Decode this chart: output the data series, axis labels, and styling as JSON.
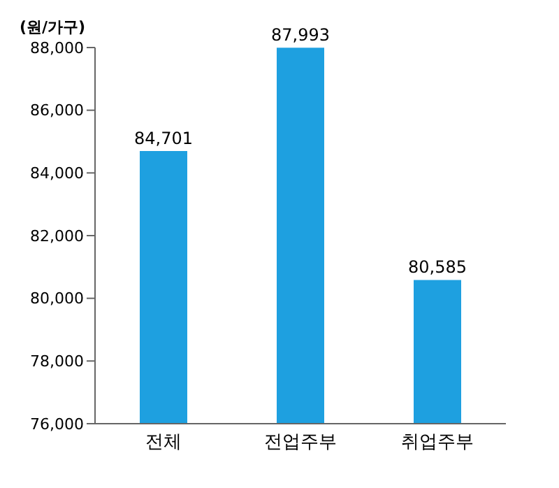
{
  "chart_data": {
    "type": "bar",
    "ylabel": "(원/가구)",
    "categories": [
      "전체",
      "전업주부",
      "취업주부"
    ],
    "values": [
      84701,
      87993,
      80585
    ],
    "value_labels": [
      "84,701",
      "87,993",
      "80,585"
    ],
    "color": "#1ea0e0",
    "ylim": [
      76000,
      88000
    ],
    "yticks": [
      {
        "value": 76000,
        "label": "76,000"
      },
      {
        "value": 78000,
        "label": "78,000"
      },
      {
        "value": 80000,
        "label": "80,000"
      },
      {
        "value": 82000,
        "label": "82,000"
      },
      {
        "value": 84000,
        "label": "84,000"
      },
      {
        "value": 86000,
        "label": "86,000"
      },
      {
        "value": 88000,
        "label": "88,000"
      }
    ],
    "grid": false
  }
}
